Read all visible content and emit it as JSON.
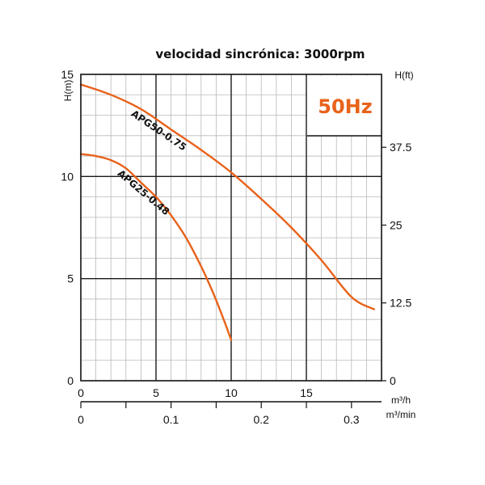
{
  "chart_data": {
    "type": "line",
    "title": "velocidad sincrónica: 3000rpm",
    "frequency_label": "50Hz",
    "accent_color": "#e8621a",
    "x": {
      "label": "m³/h",
      "ticks": [
        "0",
        "5",
        "10",
        "15"
      ],
      "range": [
        0,
        20
      ]
    },
    "x2": {
      "label": "m³/min",
      "ticks": [
        "0",
        "0.1",
        "0.2",
        "0.3"
      ],
      "range": [
        0,
        0.3333
      ]
    },
    "y": {
      "label": "H(m)",
      "ticks": [
        "0",
        "5",
        "10",
        "15"
      ],
      "range": [
        0,
        15
      ]
    },
    "y2": {
      "label": "H(ft)",
      "ticks": [
        "0",
        "12.5",
        "25",
        "37.5"
      ],
      "range": [
        0,
        49.2
      ]
    },
    "grid": true,
    "series": [
      {
        "name": "APG50-0.75",
        "x": [
          0,
          2,
          4,
          6,
          8,
          10,
          12,
          14,
          16,
          18,
          19.5
        ],
        "y": [
          14.5,
          14.0,
          13.3,
          12.3,
          11.3,
          10.2,
          8.9,
          7.5,
          5.9,
          4.1,
          3.5
        ]
      },
      {
        "name": "APG25-0.48",
        "x": [
          0,
          1,
          2,
          3,
          4,
          5,
          6,
          7,
          8,
          8.8,
          9.5,
          10
        ],
        "y": [
          11.1,
          11.0,
          10.8,
          10.4,
          9.7,
          9.0,
          8.1,
          7.0,
          5.6,
          4.3,
          3.0,
          2.0
        ]
      }
    ]
  }
}
